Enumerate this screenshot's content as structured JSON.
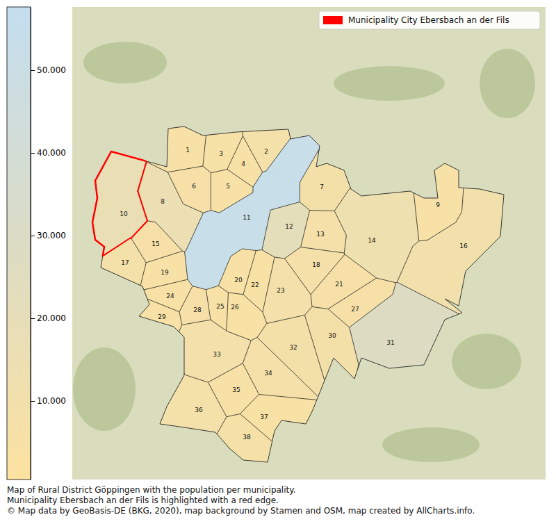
{
  "chart_data": {
    "type": "choropleth",
    "caption": [
      "Map of Rural District Göppingen with the population per municipality.",
      "Municipality Ebersbach an der Fils is highlighted with a red edge.",
      "© Map data by GeoBasis-DE (BKG, 2020), map background by Stamen and OSM, map created by AllCharts.info."
    ],
    "legend": "upper right",
    "legend_entry": "Municipality City Ebersbach an der Fils",
    "highlighted": "10",
    "colorbar": {
      "lim": [
        504,
        57650
      ],
      "ticks": [
        {
          "value": 10000,
          "label": "10.000"
        },
        {
          "value": 20000,
          "label": "20.000"
        },
        {
          "value": 30000,
          "label": "30.000"
        },
        {
          "value": 40000,
          "label": "40.000"
        },
        {
          "value": 50000,
          "label": "50.000"
        }
      ]
    },
    "regions": [
      {
        "label": "1",
        "value": 2000
      },
      {
        "label": "2",
        "value": 5000
      },
      {
        "label": "3",
        "value": 2800
      },
      {
        "label": "4",
        "value": 2000
      },
      {
        "label": "5",
        "value": 2300
      },
      {
        "label": "6",
        "value": 3000
      },
      {
        "label": "7",
        "value": 5400
      },
      {
        "label": "8",
        "value": 14000
      },
      {
        "label": "9",
        "value": 2300
      },
      {
        "label": "10",
        "value": 15500
      },
      {
        "label": "11",
        "value": 57500
      },
      {
        "label": "12",
        "value": 21000
      },
      {
        "label": "13",
        "value": 4500
      },
      {
        "label": "14",
        "value": 11000
      },
      {
        "label": "15",
        "value": 3500
      },
      {
        "label": "16",
        "value": 7500
      },
      {
        "label": "17",
        "value": 5000
      },
      {
        "label": "18",
        "value": 4700
      },
      {
        "label": "19",
        "value": 2500
      },
      {
        "label": "20",
        "value": 2200
      },
      {
        "label": "21",
        "value": 3500
      },
      {
        "label": "22",
        "value": 1200
      },
      {
        "label": "23",
        "value": 5800
      },
      {
        "label": "24",
        "value": 2400
      },
      {
        "label": "25",
        "value": 2000
      },
      {
        "label": "26",
        "value": 1500
      },
      {
        "label": "27",
        "value": 3500
      },
      {
        "label": "28",
        "value": 3300
      },
      {
        "label": "29",
        "value": 2300
      },
      {
        "label": "30",
        "value": 5500
      },
      {
        "label": "31",
        "value": 28000
      },
      {
        "label": "32",
        "value": 5300
      },
      {
        "label": "33",
        "value": 6000
      },
      {
        "label": "34",
        "value": 4500
      },
      {
        "label": "35",
        "value": 1700
      },
      {
        "label": "36",
        "value": 5000
      },
      {
        "label": "37",
        "value": 900
      },
      {
        "label": "38",
        "value": 4400
      }
    ]
  }
}
